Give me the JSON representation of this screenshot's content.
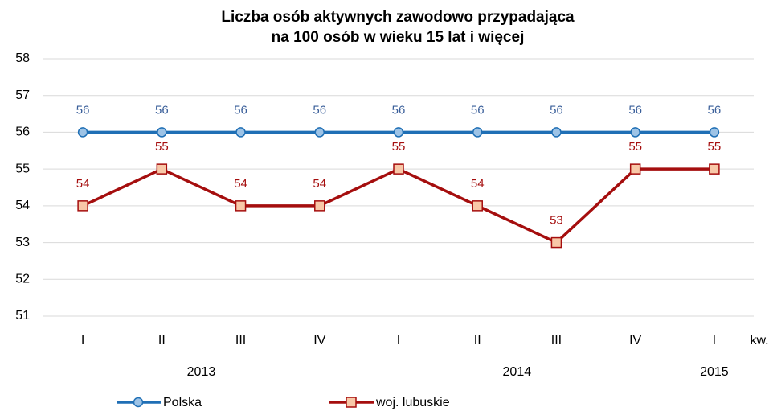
{
  "chart_data": {
    "type": "line",
    "title": [
      "Liczba osób aktywnych zawodowo przypadająca",
      "na 100 osób w wieku 15 lat i więcej"
    ],
    "categories": [
      "I",
      "II",
      "III",
      "IV",
      "I",
      "II",
      "III",
      "IV",
      "I"
    ],
    "groups": [
      {
        "label": "2013",
        "categories": 4
      },
      {
        "label": "2014",
        "categories": 4
      },
      {
        "label": "2015",
        "categories": 1
      }
    ],
    "x_unit": "kw.",
    "series": [
      {
        "name": "Polska",
        "color": "#1f6fb5",
        "marker": "circle",
        "marker_fill": "#9dc3e6",
        "label_color": "#3a5f9a",
        "values": [
          56,
          56,
          56,
          56,
          56,
          56,
          56,
          56,
          56
        ]
      },
      {
        "name": "woj. lubuskie",
        "color": "#a50e0e",
        "marker": "square",
        "marker_fill": "#f8c8a8",
        "label_color": "#a50e0e",
        "values": [
          54,
          55,
          54,
          54,
          55,
          54,
          53,
          55,
          55
        ]
      }
    ],
    "ylim": [
      51,
      58
    ],
    "yticks": [
      51,
      52,
      53,
      54,
      55,
      56,
      57,
      58
    ],
    "grid": true,
    "legend": "bottom"
  }
}
